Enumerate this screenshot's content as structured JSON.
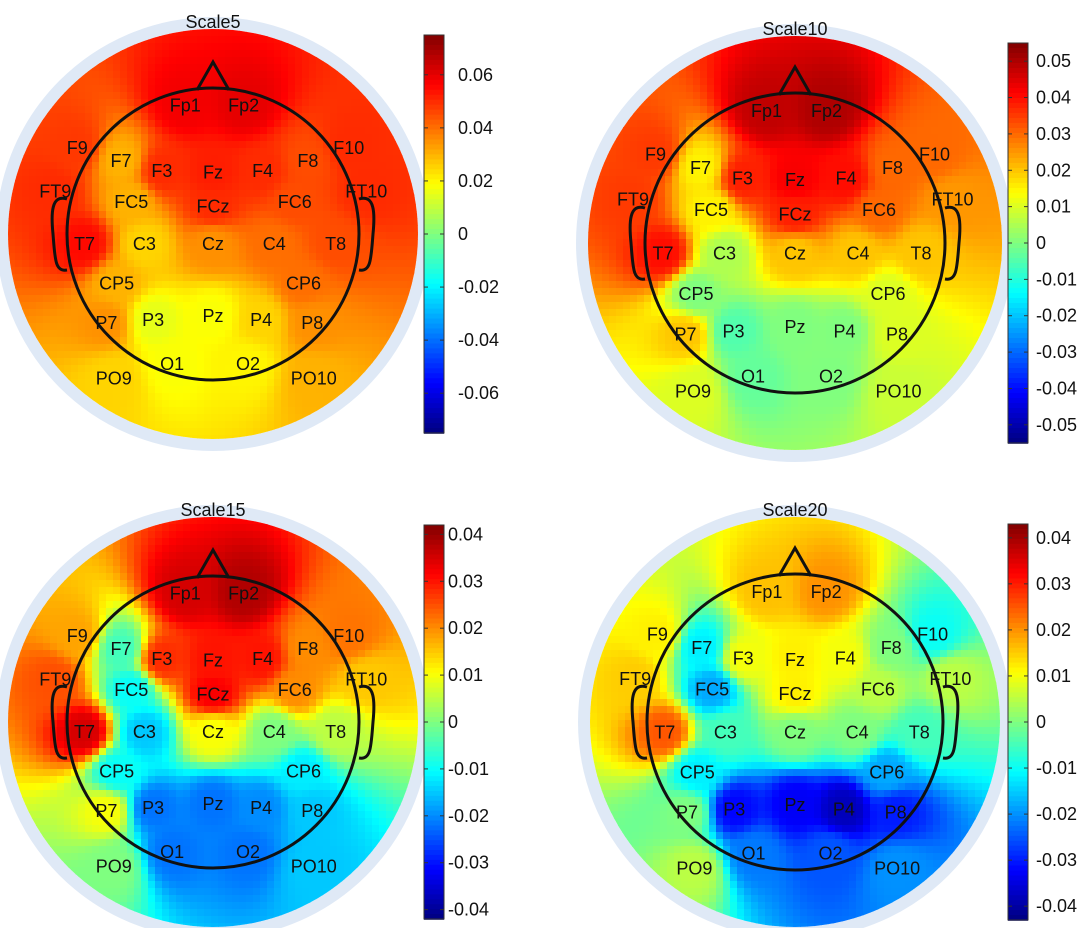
{
  "chart_data": [
    {
      "type": "heatmap",
      "subtype": "eeg-topographic-map",
      "title": "Scale5",
      "colormap": "jet",
      "colorbar": {
        "range": [
          -0.075,
          0.075
        ],
        "ticks": [
          "0.06",
          "0.04",
          "0.02",
          "0",
          "-0.02",
          "-0.04",
          "-0.06"
        ],
        "tick_values": [
          0.06,
          0.04,
          0.02,
          0,
          -0.02,
          -0.04,
          -0.06
        ]
      },
      "channels": [
        {
          "label": "Fp1",
          "value": 0.058
        },
        {
          "label": "Fp2",
          "value": 0.06
        },
        {
          "label": "F9",
          "value": 0.048
        },
        {
          "label": "F7",
          "value": 0.03
        },
        {
          "label": "F3",
          "value": 0.05
        },
        {
          "label": "Fz",
          "value": 0.052
        },
        {
          "label": "F4",
          "value": 0.05
        },
        {
          "label": "F8",
          "value": 0.045
        },
        {
          "label": "F10",
          "value": 0.05
        },
        {
          "label": "FT9",
          "value": 0.05
        },
        {
          "label": "FC5",
          "value": 0.03
        },
        {
          "label": "FCz",
          "value": 0.05
        },
        {
          "label": "FC6",
          "value": 0.045
        },
        {
          "label": "FT10",
          "value": 0.05
        },
        {
          "label": "T7",
          "value": 0.055
        },
        {
          "label": "C3",
          "value": 0.025
        },
        {
          "label": "Cz",
          "value": 0.035
        },
        {
          "label": "C4",
          "value": 0.04
        },
        {
          "label": "T8",
          "value": 0.045
        },
        {
          "label": "CP5",
          "value": 0.03
        },
        {
          "label": "CP6",
          "value": 0.04
        },
        {
          "label": "P7",
          "value": 0.035
        },
        {
          "label": "P3",
          "value": 0.015
        },
        {
          "label": "Pz",
          "value": 0.018
        },
        {
          "label": "P4",
          "value": 0.025
        },
        {
          "label": "P8",
          "value": 0.035
        },
        {
          "label": "PO9",
          "value": 0.025
        },
        {
          "label": "O1",
          "value": 0.018
        },
        {
          "label": "O2",
          "value": 0.02
        },
        {
          "label": "PO10",
          "value": 0.03
        }
      ]
    },
    {
      "type": "heatmap",
      "subtype": "eeg-topographic-map",
      "title": "Scale10",
      "colormap": "jet",
      "colorbar": {
        "range": [
          -0.055,
          0.055
        ],
        "ticks": [
          "0.05",
          "0.04",
          "0.03",
          "0.02",
          "0.01",
          "0",
          "-0.01",
          "-0.02",
          "-0.03",
          "-0.04",
          "-0.05"
        ],
        "tick_values": [
          0.05,
          0.04,
          0.03,
          0.02,
          0.01,
          0,
          -0.01,
          -0.02,
          -0.03,
          -0.04,
          -0.05
        ]
      },
      "channels": [
        {
          "label": "Fp1",
          "value": 0.048
        },
        {
          "label": "Fp2",
          "value": 0.05
        },
        {
          "label": "F9",
          "value": 0.035
        },
        {
          "label": "F7",
          "value": 0.015
        },
        {
          "label": "F3",
          "value": 0.038
        },
        {
          "label": "Fz",
          "value": 0.042
        },
        {
          "label": "F4",
          "value": 0.04
        },
        {
          "label": "F8",
          "value": 0.03
        },
        {
          "label": "F10",
          "value": 0.03
        },
        {
          "label": "FT9",
          "value": 0.035
        },
        {
          "label": "FC5",
          "value": 0.015
        },
        {
          "label": "FCz",
          "value": 0.038
        },
        {
          "label": "FC6",
          "value": 0.03
        },
        {
          "label": "FT10",
          "value": 0.025
        },
        {
          "label": "T7",
          "value": 0.04
        },
        {
          "label": "C3",
          "value": 0.005
        },
        {
          "label": "Cz",
          "value": 0.02
        },
        {
          "label": "C4",
          "value": 0.02
        },
        {
          "label": "T8",
          "value": 0.02
        },
        {
          "label": "CP5",
          "value": 0.0
        },
        {
          "label": "CP6",
          "value": 0.01
        },
        {
          "label": "P7",
          "value": 0.02
        },
        {
          "label": "P3",
          "value": -0.005
        },
        {
          "label": "Pz",
          "value": 0.0
        },
        {
          "label": "P4",
          "value": 0.0
        },
        {
          "label": "P8",
          "value": 0.01
        },
        {
          "label": "PO9",
          "value": 0.01
        },
        {
          "label": "O1",
          "value": -0.003
        },
        {
          "label": "O2",
          "value": 0.0
        },
        {
          "label": "PO10",
          "value": 0.008
        }
      ]
    },
    {
      "type": "heatmap",
      "subtype": "eeg-topographic-map",
      "title": "Scale15",
      "colormap": "jet",
      "colorbar": {
        "range": [
          -0.042,
          0.042
        ],
        "ticks": [
          "0.04",
          "0.03",
          "0.02",
          "0.01",
          "0",
          "-0.01",
          "-0.02",
          "-0.03",
          "-0.04"
        ],
        "tick_values": [
          0.04,
          0.03,
          0.02,
          0.01,
          0,
          -0.01,
          -0.02,
          -0.03,
          -0.04
        ]
      },
      "channels": [
        {
          "label": "Fp1",
          "value": 0.035
        },
        {
          "label": "Fp2",
          "value": 0.038
        },
        {
          "label": "F9",
          "value": 0.018
        },
        {
          "label": "F7",
          "value": -0.005
        },
        {
          "label": "F3",
          "value": 0.028
        },
        {
          "label": "Fz",
          "value": 0.03
        },
        {
          "label": "F4",
          "value": 0.03
        },
        {
          "label": "F8",
          "value": 0.02
        },
        {
          "label": "F10",
          "value": 0.022
        },
        {
          "label": "FT9",
          "value": 0.025
        },
        {
          "label": "FC5",
          "value": -0.01
        },
        {
          "label": "FCz",
          "value": 0.032
        },
        {
          "label": "FC6",
          "value": 0.02
        },
        {
          "label": "FT10",
          "value": 0.015
        },
        {
          "label": "T7",
          "value": 0.035
        },
        {
          "label": "C3",
          "value": -0.015
        },
        {
          "label": "Cz",
          "value": 0.01
        },
        {
          "label": "C4",
          "value": 0.0
        },
        {
          "label": "T8",
          "value": 0.005
        },
        {
          "label": "CP5",
          "value": -0.01
        },
        {
          "label": "CP6",
          "value": -0.012
        },
        {
          "label": "P7",
          "value": 0.01
        },
        {
          "label": "P3",
          "value": -0.022
        },
        {
          "label": "Pz",
          "value": -0.022
        },
        {
          "label": "P4",
          "value": -0.02
        },
        {
          "label": "P8",
          "value": -0.015
        },
        {
          "label": "PO9",
          "value": 0.0
        },
        {
          "label": "O1",
          "value": -0.022
        },
        {
          "label": "O2",
          "value": -0.022
        },
        {
          "label": "PO10",
          "value": -0.015
        }
      ]
    },
    {
      "type": "heatmap",
      "subtype": "eeg-topographic-map",
      "title": "Scale20",
      "colormap": "jet",
      "colorbar": {
        "range": [
          -0.043,
          0.043
        ],
        "ticks": [
          "0.04",
          "0.03",
          "0.02",
          "0.01",
          "0",
          "-0.01",
          "-0.02",
          "-0.03",
          "-0.04"
        ],
        "tick_values": [
          0.04,
          0.03,
          0.02,
          0.01,
          0,
          -0.01,
          -0.02,
          -0.03,
          -0.04
        ]
      },
      "channels": [
        {
          "label": "Fp1",
          "value": 0.016
        },
        {
          "label": "Fp2",
          "value": 0.02
        },
        {
          "label": "F9",
          "value": 0.012
        },
        {
          "label": "F7",
          "value": -0.012
        },
        {
          "label": "F3",
          "value": 0.01
        },
        {
          "label": "Fz",
          "value": 0.012
        },
        {
          "label": "F4",
          "value": 0.01
        },
        {
          "label": "F8",
          "value": 0.0
        },
        {
          "label": "F10",
          "value": -0.01
        },
        {
          "label": "FT9",
          "value": 0.015
        },
        {
          "label": "FC5",
          "value": -0.018
        },
        {
          "label": "FCz",
          "value": 0.012
        },
        {
          "label": "FC6",
          "value": 0.005
        },
        {
          "label": "FT10",
          "value": 0.005
        },
        {
          "label": "T7",
          "value": 0.025
        },
        {
          "label": "C3",
          "value": -0.005
        },
        {
          "label": "Cz",
          "value": 0.0
        },
        {
          "label": "C4",
          "value": 0.0
        },
        {
          "label": "T8",
          "value": -0.005
        },
        {
          "label": "CP5",
          "value": -0.012
        },
        {
          "label": "CP6",
          "value": -0.018
        },
        {
          "label": "P7",
          "value": 0.0
        },
        {
          "label": "P3",
          "value": -0.032
        },
        {
          "label": "Pz",
          "value": -0.033
        },
        {
          "label": "P4",
          "value": -0.038
        },
        {
          "label": "P8",
          "value": -0.03
        },
        {
          "label": "PO9",
          "value": 0.005
        },
        {
          "label": "O1",
          "value": -0.022
        },
        {
          "label": "O2",
          "value": -0.025
        },
        {
          "label": "PO10",
          "value": -0.02
        }
      ]
    }
  ]
}
